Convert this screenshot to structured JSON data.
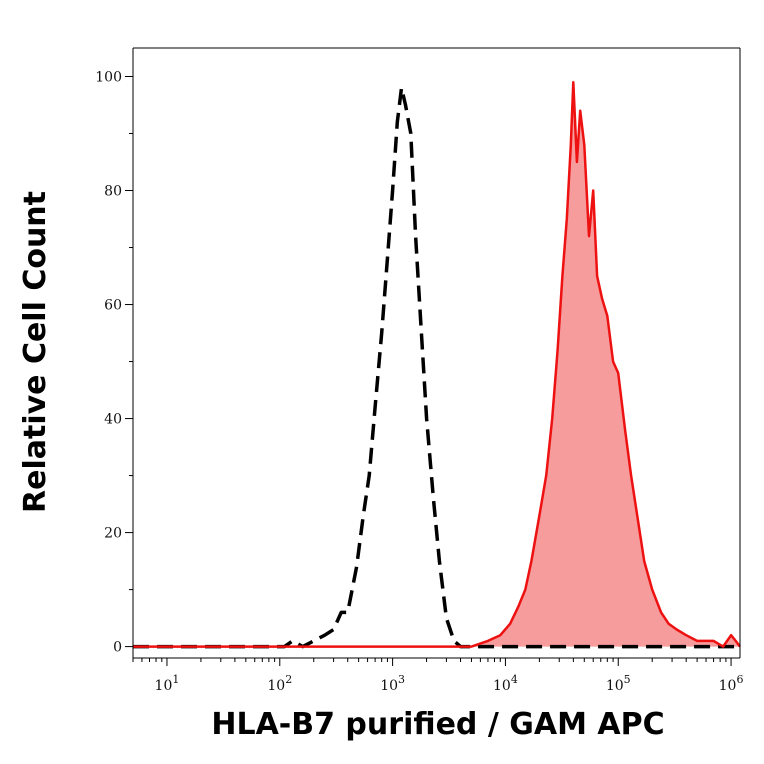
{
  "chart_data": {
    "type": "area",
    "title": "",
    "xlabel": "HLA-B7 purified / GAM APC",
    "ylabel": "Relative Cell Count",
    "x_scale": "log",
    "xlim": [
      5,
      1200000
    ],
    "ylim": [
      -2,
      105
    ],
    "grid": false,
    "legend": "none",
    "y_ticks": [
      0,
      20,
      40,
      60,
      80,
      100
    ],
    "x_ticks": [
      {
        "value": 10,
        "base": "10",
        "exp": "1"
      },
      {
        "value": 100,
        "base": "10",
        "exp": "2"
      },
      {
        "value": 1000,
        "base": "10",
        "exp": "3"
      },
      {
        "value": 10000,
        "base": "10",
        "exp": "4"
      },
      {
        "value": 100000,
        "base": "10",
        "exp": "5"
      },
      {
        "value": 1000000,
        "base": "10",
        "exp": "6"
      }
    ],
    "series": [
      {
        "style": "dashed",
        "color": "#000000",
        "fill": "none",
        "x": [
          5,
          110,
          130,
          160,
          200,
          250,
          300,
          350,
          400,
          480,
          550,
          620,
          700,
          800,
          900,
          1000,
          1100,
          1200,
          1300,
          1450,
          1600,
          1800,
          2000,
          2300,
          2600,
          3000,
          3500,
          4000,
          5000,
          1200000
        ],
        "y": [
          0,
          0,
          1,
          0,
          1,
          2,
          3,
          6,
          6,
          14,
          23,
          30,
          42,
          55,
          68,
          80,
          92,
          98,
          95,
          90,
          72,
          55,
          40,
          26,
          15,
          5,
          1,
          0,
          0,
          0
        ]
      },
      {
        "style": "solid",
        "color": "#ee1111",
        "fill": "#f79c9c",
        "x": [
          5,
          800,
          1500,
          3000,
          5000,
          7000,
          9000,
          11000,
          13000,
          15000,
          17000,
          20000,
          23000,
          26000,
          29000,
          32000,
          35000,
          38000,
          40000,
          43000,
          46000,
          50000,
          55000,
          60000,
          65000,
          72000,
          80000,
          90000,
          100000,
          115000,
          130000,
          150000,
          170000,
          200000,
          240000,
          280000,
          330000,
          400000,
          500000,
          600000,
          700000,
          850000,
          1000000,
          1100000,
          1200000
        ],
        "y": [
          0,
          0,
          0,
          0,
          0,
          1,
          2,
          4,
          7,
          10,
          15,
          23,
          30,
          40,
          52,
          65,
          75,
          88,
          99,
          85,
          94,
          88,
          72,
          80,
          65,
          61,
          58,
          50,
          48,
          38,
          30,
          22,
          15,
          10,
          6,
          4,
          3,
          2,
          1,
          1,
          1,
          0,
          2,
          1,
          0
        ]
      }
    ]
  }
}
